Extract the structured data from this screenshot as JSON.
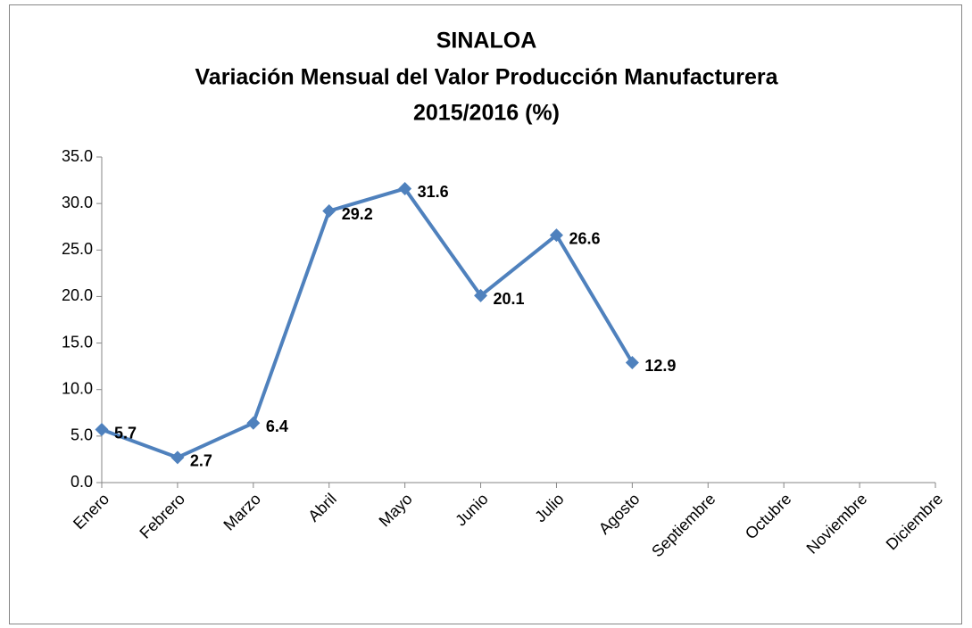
{
  "chart_data": {
    "type": "line",
    "title": [
      "SINALOA",
      "Variación Mensual del Valor Producción Manufacturera",
      "2015/2016 (%)"
    ],
    "categories": [
      "Enero",
      "Febrero",
      "Marzo",
      "Abril",
      "Mayo",
      "Junio",
      "Julio",
      "Agosto",
      "Septiembre",
      "Octubre",
      "Noviembre",
      "Diciembre"
    ],
    "values": [
      5.7,
      2.7,
      6.4,
      29.2,
      31.6,
      20.1,
      26.6,
      12.9,
      null,
      null,
      null,
      null
    ],
    "color": "#4f81bd",
    "ylim": [
      0,
      35
    ],
    "yticks": [
      {
        "value": 0,
        "label": "0.0"
      },
      {
        "value": 5,
        "label": "5.0"
      },
      {
        "value": 10,
        "label": "10.0"
      },
      {
        "value": 15,
        "label": "15.0"
      },
      {
        "value": 20,
        "label": "20.0"
      },
      {
        "value": 25,
        "label": "25.0"
      },
      {
        "value": 30,
        "label": "30.0"
      },
      {
        "value": 35,
        "label": "35.0"
      }
    ],
    "grid": false
  }
}
